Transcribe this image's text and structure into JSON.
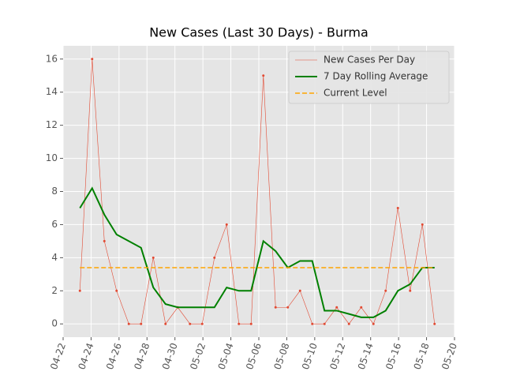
{
  "chart_data": {
    "type": "line",
    "title": "New Cases (Last 30 Days) - Burma",
    "x": [
      1.2,
      2.075,
      2.95,
      3.825,
      4.7,
      5.575,
      6.45,
      7.325,
      8.2,
      9.075,
      9.95,
      10.825,
      11.7,
      12.575,
      13.45,
      14.325,
      15.2,
      16.075,
      16.95,
      17.825,
      18.7,
      19.575,
      20.45,
      21.325,
      22.2,
      23.075,
      23.95,
      24.825,
      25.7,
      26.575
    ],
    "series": [
      {
        "name": "New Cases Per Day",
        "color": "#e24a33",
        "style": "thin-marker",
        "values": [
          2,
          16,
          5,
          2,
          0,
          0,
          4,
          0,
          1,
          0,
          0,
          4,
          6,
          0,
          0,
          15,
          1,
          1,
          2,
          0,
          0,
          1,
          0,
          1,
          0,
          2,
          7,
          2,
          6,
          0
        ]
      },
      {
        "name": "7 Day Rolling Average",
        "color": "#008000",
        "style": "thick",
        "values": [
          7.0,
          8.2,
          6.6,
          5.4,
          5.0,
          4.6,
          2.2,
          1.2,
          1.0,
          1.0,
          1.0,
          1.0,
          2.2,
          2.0,
          2.0,
          5.0,
          4.4,
          3.4,
          3.8,
          3.8,
          0.8,
          0.8,
          0.6,
          0.4,
          0.4,
          0.8,
          2.0,
          2.4,
          3.4,
          3.4
        ]
      }
    ],
    "reference_line": {
      "name": "Current Level",
      "color": "#ffa500",
      "value": 3.4
    },
    "xlim": [
      0,
      28
    ],
    "xticks": [
      {
        "value": 0,
        "label": "04-22"
      },
      {
        "value": 2,
        "label": "04-24"
      },
      {
        "value": 4,
        "label": "04-26"
      },
      {
        "value": 6,
        "label": "04-28"
      },
      {
        "value": 8,
        "label": "04-30"
      },
      {
        "value": 10,
        "label": "05-02"
      },
      {
        "value": 12,
        "label": "05-04"
      },
      {
        "value": 14,
        "label": "05-06"
      },
      {
        "value": 16,
        "label": "05-08"
      },
      {
        "value": 18,
        "label": "05-10"
      },
      {
        "value": 20,
        "label": "05-12"
      },
      {
        "value": 22,
        "label": "05-14"
      },
      {
        "value": 24,
        "label": "05-16"
      },
      {
        "value": 26,
        "label": "05-18"
      },
      {
        "value": 28,
        "label": "05-20"
      }
    ],
    "ylim": [
      -0.8,
      16.8
    ],
    "yticks": [
      0,
      2,
      4,
      6,
      8,
      10,
      12,
      14,
      16
    ],
    "grid": true,
    "legend": "upper right"
  }
}
